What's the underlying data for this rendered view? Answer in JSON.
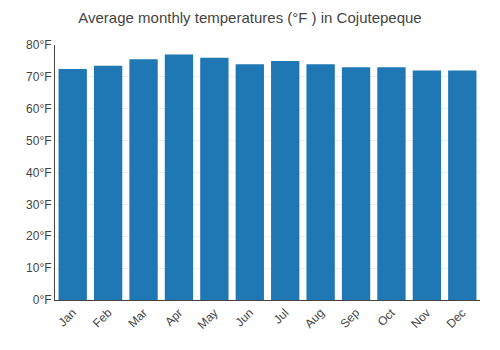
{
  "chart_data": {
    "type": "bar",
    "title": "Average monthly temperatures (°F ) in Cojutepeque",
    "categories": [
      "Jan",
      "Feb",
      "Mar",
      "Apr",
      "May",
      "Jun",
      "Jul",
      "Aug",
      "Sep",
      "Oct",
      "Nov",
      "Dec"
    ],
    "values": [
      72.5,
      73.5,
      75.5,
      77.0,
      76.0,
      74.0,
      75.0,
      74.0,
      73.0,
      73.0,
      72.0,
      72.0
    ],
    "ylim": [
      0,
      80
    ],
    "yticks": [
      {
        "value": 0,
        "label": "0°F"
      },
      {
        "value": 10,
        "label": "10°F"
      },
      {
        "value": 20,
        "label": "20°F"
      },
      {
        "value": 30,
        "label": "30°F"
      },
      {
        "value": 40,
        "label": "40°F"
      },
      {
        "value": 50,
        "label": "50°F"
      },
      {
        "value": 60,
        "label": "60°F"
      },
      {
        "value": 70,
        "label": "70°F"
      },
      {
        "value": 80,
        "label": "80°F"
      }
    ],
    "grid": true
  }
}
